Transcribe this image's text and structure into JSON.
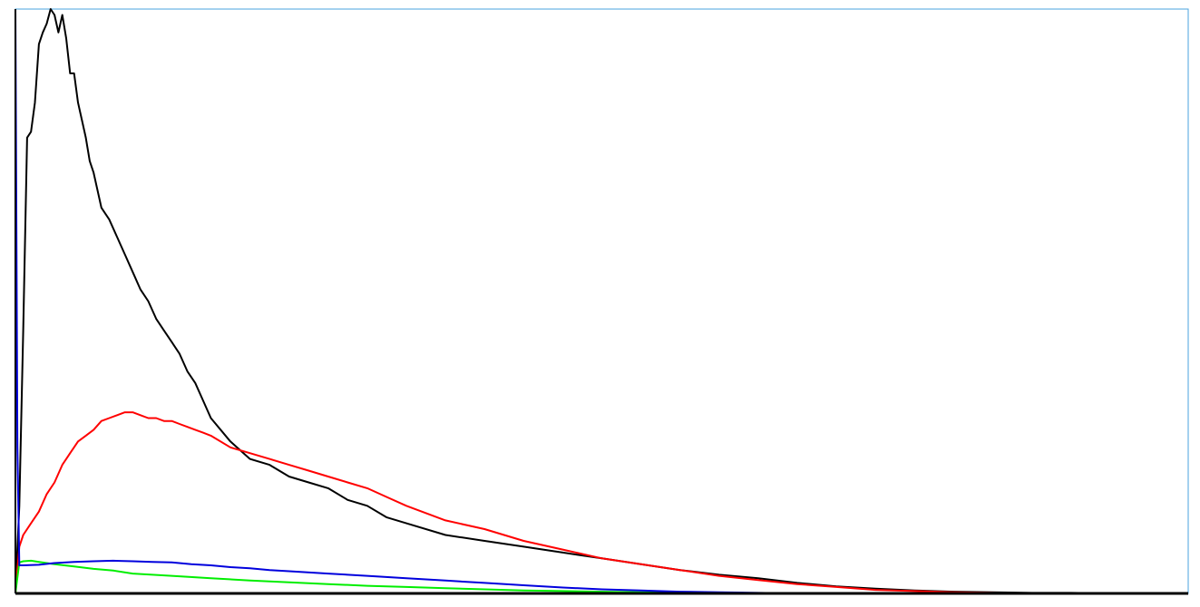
{
  "chart_data": {
    "type": "line",
    "title": "",
    "xlabel": "",
    "ylabel": "",
    "xlim": [
      0,
      300
    ],
    "ylim": [
      0,
      100
    ],
    "grid": false,
    "legend": "none",
    "frame_color": "#4aa3df",
    "series": [
      {
        "color": "#000000",
        "x": [
          0,
          1,
          2,
          3,
          4,
          5,
          6,
          7,
          8,
          9,
          10,
          11,
          12,
          13,
          14,
          15,
          16,
          17,
          18,
          19,
          20,
          22,
          24,
          26,
          28,
          30,
          32,
          34,
          36,
          38,
          40,
          42,
          44,
          46,
          48,
          50,
          55,
          60,
          65,
          70,
          75,
          80,
          85,
          90,
          95,
          100,
          110,
          120,
          130,
          140,
          150,
          160,
          170,
          180,
          190,
          200,
          210,
          220,
          230,
          240,
          250,
          260,
          270,
          280,
          290,
          300
        ],
        "y": [
          0,
          15,
          45,
          78,
          79,
          84,
          94,
          96,
          97.5,
          100,
          99,
          96,
          99,
          95,
          89,
          89,
          84,
          81,
          78,
          74,
          72,
          66,
          64,
          61,
          58,
          55,
          52,
          50,
          47,
          45,
          43,
          41,
          38,
          36,
          33,
          30,
          26,
          23,
          22,
          20,
          19,
          18,
          16,
          15,
          13,
          12,
          10,
          9,
          8,
          7,
          6,
          5,
          4,
          3.2,
          2.6,
          1.8,
          1.2,
          0.8,
          0.5,
          0.3,
          0.2,
          0.1,
          0.1,
          0,
          0,
          0
        ]
      },
      {
        "color": "#ff0000",
        "x": [
          0,
          1,
          2,
          4,
          6,
          8,
          10,
          12,
          14,
          16,
          18,
          20,
          22,
          24,
          26,
          28,
          30,
          32,
          34,
          36,
          38,
          40,
          42,
          44,
          46,
          48,
          50,
          55,
          60,
          65,
          70,
          75,
          80,
          85,
          90,
          95,
          100,
          110,
          120,
          130,
          140,
          150,
          160,
          170,
          180,
          190,
          200,
          210,
          220,
          230,
          240,
          250,
          260,
          270,
          280,
          290,
          300
        ],
        "y": [
          0,
          8,
          10,
          12,
          14,
          17,
          19,
          22,
          24,
          26,
          27,
          28,
          29.5,
          30,
          30.5,
          31,
          31,
          30.5,
          30,
          30,
          29.5,
          29.5,
          29,
          28.5,
          28,
          27.5,
          27,
          25,
          24,
          23,
          22,
          21,
          20,
          19,
          18,
          16.5,
          15,
          12.5,
          11,
          9,
          7.5,
          6,
          5,
          4,
          3,
          2.3,
          1.6,
          1.1,
          0.6,
          0.4,
          0.2,
          0.1,
          0,
          0,
          0,
          0,
          0
        ]
      },
      {
        "color": "#00ee00",
        "x": [
          0,
          1,
          2,
          4,
          6,
          10,
          15,
          20,
          25,
          30,
          40,
          50,
          60,
          70,
          80,
          90,
          100,
          110,
          120,
          130,
          140,
          150,
          160,
          170,
          180,
          190,
          200,
          210,
          220,
          230,
          240,
          250,
          260,
          270,
          280,
          290,
          300
        ],
        "y": [
          0,
          5.3,
          5.5,
          5.6,
          5.4,
          5.0,
          4.6,
          4.2,
          3.9,
          3.4,
          3.0,
          2.6,
          2.2,
          1.9,
          1.6,
          1.3,
          1.1,
          0.9,
          0.7,
          0.5,
          0.4,
          0.3,
          0.2,
          0.15,
          0.1,
          0.05,
          0,
          0,
          0,
          0,
          0,
          0,
          0,
          0,
          0,
          0,
          0
        ]
      },
      {
        "color": "#0000dd",
        "x": [
          0,
          0.5,
          1,
          2,
          6,
          10,
          15,
          20,
          25,
          30,
          35,
          40,
          45,
          50,
          55,
          60,
          65,
          70,
          80,
          90,
          100,
          110,
          120,
          130,
          140,
          150,
          160,
          170,
          180,
          190,
          200,
          210,
          220,
          230,
          240,
          250,
          260,
          270,
          280,
          290,
          300
        ],
        "y": [
          100,
          25,
          4.8,
          4.8,
          4.9,
          5.2,
          5.4,
          5.5,
          5.6,
          5.5,
          5.4,
          5.3,
          5.0,
          4.8,
          4.5,
          4.3,
          4.0,
          3.8,
          3.4,
          3.0,
          2.6,
          2.2,
          1.8,
          1.4,
          1.0,
          0.7,
          0.5,
          0.3,
          0.2,
          0.1,
          0,
          0,
          0,
          0,
          0,
          0,
          0,
          0,
          0,
          0,
          0
        ]
      }
    ]
  }
}
